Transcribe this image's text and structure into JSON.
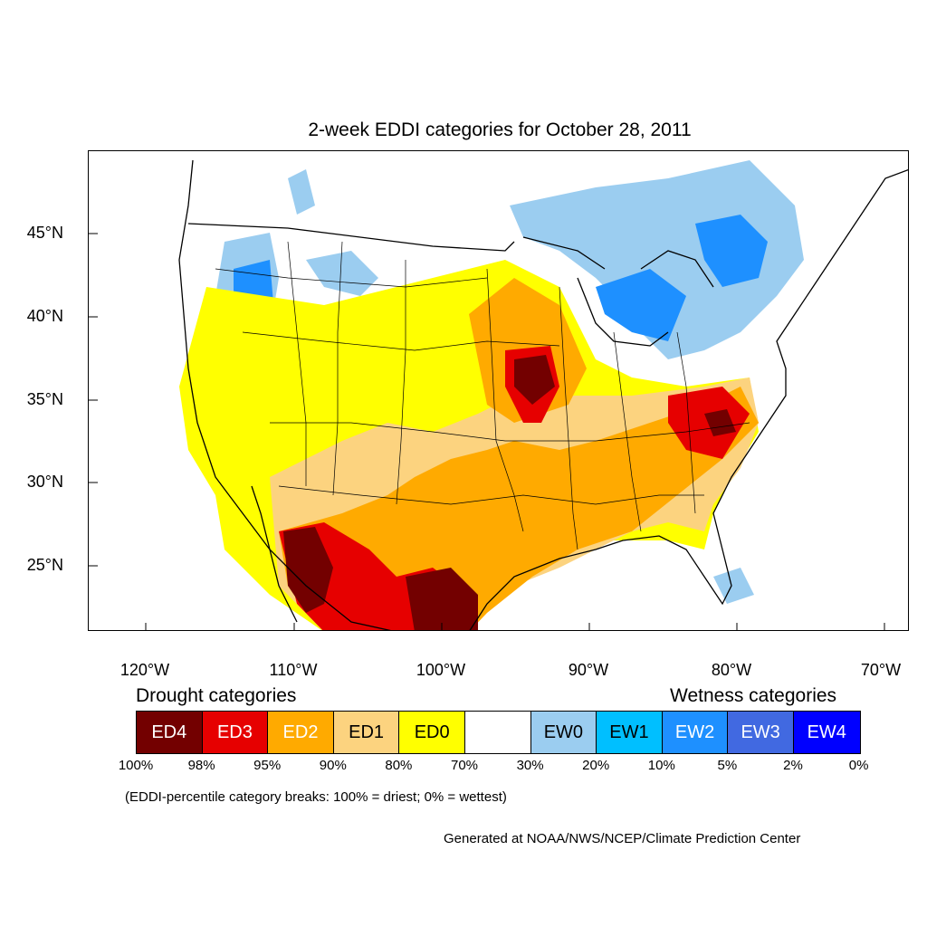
{
  "title": "2-week EDDI categories for October 28, 2011",
  "latitude_labels": [
    "45°N",
    "40°N",
    "35°N",
    "30°N",
    "25°N"
  ],
  "longitude_labels": [
    "120°W",
    "110°W",
    "100°W",
    "90°W",
    "80°W",
    "70°W"
  ],
  "drought_heading": "Drought categories",
  "wetness_heading": "Wetness categories",
  "categories": [
    {
      "label": "ED4",
      "color": "#730000",
      "text_color": "#ffffff"
    },
    {
      "label": "ED3",
      "color": "#e60000",
      "text_color": "#ffffff"
    },
    {
      "label": "ED2",
      "color": "#ffaa00",
      "text_color": "#ffffff"
    },
    {
      "label": "ED1",
      "color": "#fcd37f",
      "text_color": "#000000"
    },
    {
      "label": "ED0",
      "color": "#ffff00",
      "text_color": "#000000"
    },
    {
      "label": "",
      "color": "#ffffff",
      "text_color": "#000000"
    },
    {
      "label": "EW0",
      "color": "#9bcdf0",
      "text_color": "#000000"
    },
    {
      "label": "EW1",
      "color": "#00bfff",
      "text_color": "#000000"
    },
    {
      "label": "EW2",
      "color": "#1e90ff",
      "text_color": "#ffffff"
    },
    {
      "label": "EW3",
      "color": "#4169e1",
      "text_color": "#ffffff"
    },
    {
      "label": "EW4",
      "color": "#0000ff",
      "text_color": "#ffffff"
    }
  ],
  "percentile_breaks": [
    "100%",
    "98%",
    "95%",
    "90%",
    "80%",
    "70%",
    "30%",
    "20%",
    "10%",
    "5%",
    "2%",
    "0%"
  ],
  "note": "(EDDI-percentile category breaks: 100% = driest; 0% = wettest)",
  "credit": "Generated at NOAA/NWS/NCEP/Climate Prediction Center"
}
